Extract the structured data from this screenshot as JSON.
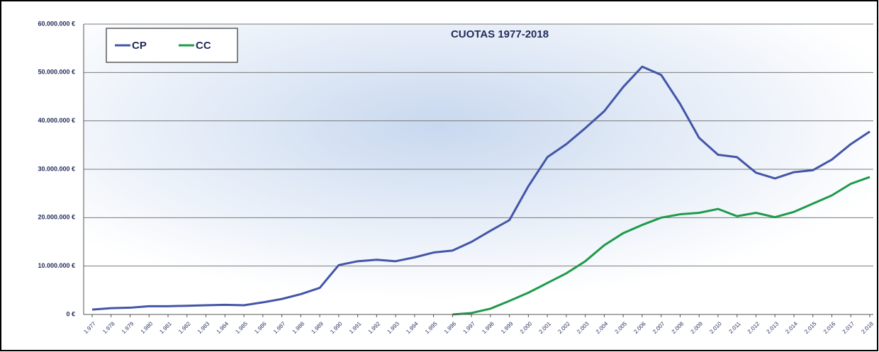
{
  "chart_data": {
    "type": "line",
    "title": "CUOTAS 1977-2018",
    "categories": [
      "1.977",
      "1.978",
      "1.979",
      "1.980",
      "1.981",
      "1.982",
      "1.983",
      "1.984",
      "1.985",
      "1.986",
      "1.987",
      "1.988",
      "1.989",
      "1.990",
      "1.991",
      "1.992",
      "1.993",
      "1.994",
      "1.995",
      "1.996",
      "1.997",
      "1.998",
      "1.999",
      "2.000",
      "2.001",
      "2.002",
      "2.003",
      "2.004",
      "2.005",
      "2.006",
      "2.007",
      "2.008",
      "2.009",
      "2.010",
      "2.011",
      "2.012",
      "2.013",
      "2.014",
      "2.015",
      "2.016",
      "2.017",
      "2.018"
    ],
    "series": [
      {
        "name": "CP",
        "color": "#4355a8",
        "values": [
          1000000,
          1300000,
          1400000,
          1700000,
          1700000,
          1800000,
          1900000,
          2000000,
          1900000,
          2500000,
          3200000,
          4200000,
          5500000,
          10200000,
          11000000,
          11300000,
          11000000,
          11800000,
          12800000,
          13200000,
          15000000,
          17300000,
          19500000,
          26500000,
          32500000,
          35200000,
          38500000,
          42000000,
          47000000,
          51200000,
          49500000,
          43500000,
          36500000,
          33000000,
          32500000,
          29300000,
          28100000,
          29400000,
          29800000,
          32000000,
          35200000,
          37800000
        ]
      },
      {
        "name": "CC",
        "color": "#1e9a4a",
        "values": [
          null,
          null,
          null,
          null,
          null,
          null,
          null,
          null,
          null,
          null,
          null,
          null,
          null,
          null,
          null,
          null,
          null,
          null,
          null,
          0,
          300000,
          1200000,
          2800000,
          4500000,
          6500000,
          8500000,
          11000000,
          14300000,
          16800000,
          18500000,
          20000000,
          20700000,
          21000000,
          21800000,
          20300000,
          21000000,
          20100000,
          21200000,
          22900000,
          24600000,
          27000000,
          28400000
        ]
      }
    ],
    "ylim": [
      0,
      60000000
    ],
    "yticks": [
      {
        "value": 0,
        "label": "0 €"
      },
      {
        "value": 10000000,
        "label": "10.000.000 €"
      },
      {
        "value": 20000000,
        "label": "20.000.000 €"
      },
      {
        "value": 30000000,
        "label": "30.000.000 €"
      },
      {
        "value": 40000000,
        "label": "40.000.000 €"
      },
      {
        "value": 50000000,
        "label": "50.000.000 €"
      },
      {
        "value": 60000000,
        "label": "60.000.000 €"
      }
    ],
    "grid": true,
    "legend": "top-left"
  }
}
